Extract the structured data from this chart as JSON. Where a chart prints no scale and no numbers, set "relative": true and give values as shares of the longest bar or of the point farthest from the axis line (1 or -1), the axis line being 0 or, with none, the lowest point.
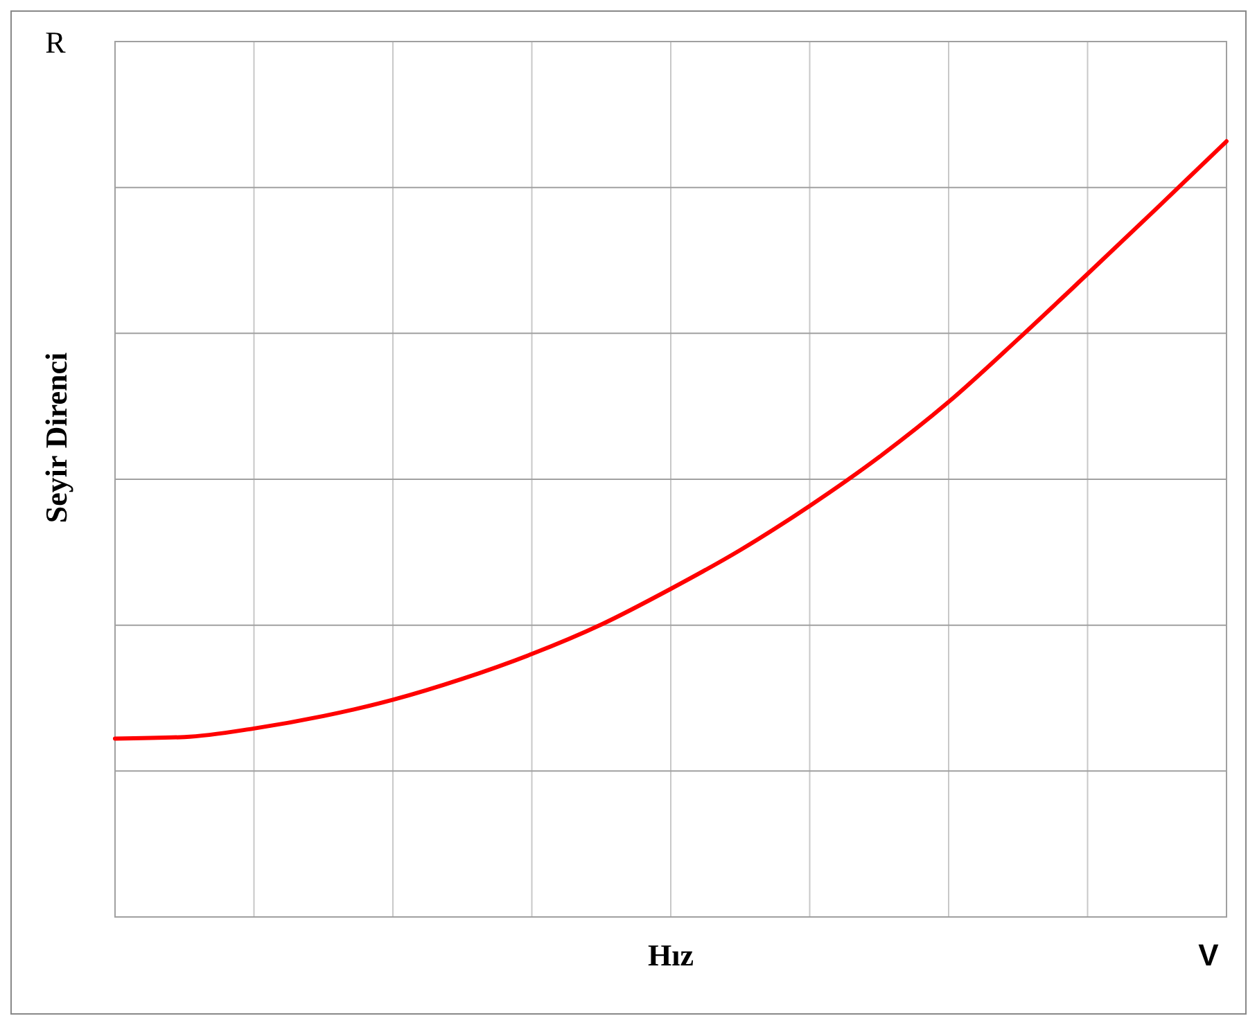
{
  "chart_data": {
    "type": "line",
    "relative": true,
    "ylabel": "Seyir Direnci",
    "xlabel": "Hız",
    "annotations": [
      "R",
      "V"
    ],
    "grid": true,
    "line_style": "solid",
    "categories": [
      null,
      null,
      null,
      null,
      null,
      null,
      null,
      null,
      null,
      null,
      null,
      null,
      null,
      null,
      null,
      null,
      null
    ],
    "series": [
      {
        "color": "#ff0000",
        "values": [
          0.23,
          0.232,
          0.243,
          0.259,
          0.28,
          0.307,
          0.339,
          0.377,
          0.423,
          0.473,
          0.53,
          0.593,
          0.664,
          0.745,
          0.829,
          0.914,
          1
        ]
      }
    ]
  }
}
